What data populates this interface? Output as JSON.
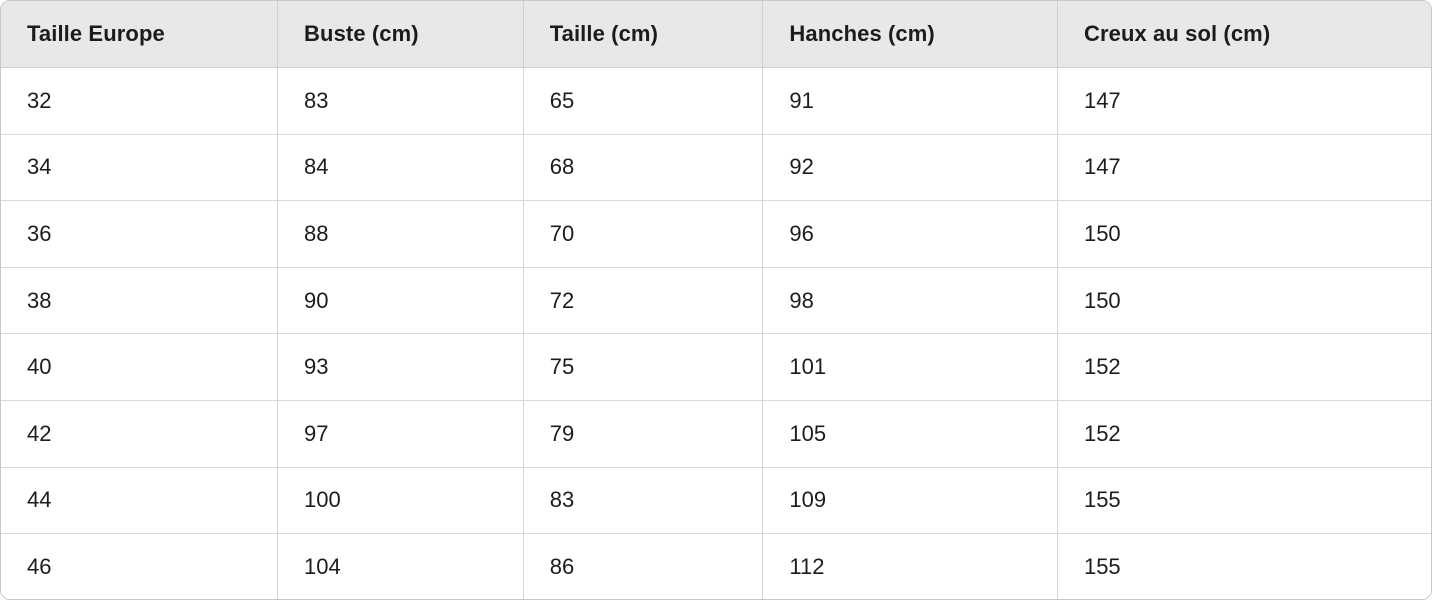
{
  "chart_data": {
    "type": "table",
    "columns": [
      "Taille Europe",
      "Buste (cm)",
      "Taille (cm)",
      "Hanches (cm)",
      "Creux au sol (cm)"
    ],
    "rows": [
      [
        "32",
        "83",
        "65",
        "91",
        "147"
      ],
      [
        "34",
        "84",
        "68",
        "92",
        "147"
      ],
      [
        "36",
        "88",
        "70",
        "96",
        "150"
      ],
      [
        "38",
        "90",
        "72",
        "98",
        "150"
      ],
      [
        "40",
        "93",
        "75",
        "101",
        "152"
      ],
      [
        "42",
        "97",
        "79",
        "105",
        "152"
      ],
      [
        "44",
        "100",
        "83",
        "109",
        "155"
      ],
      [
        "46",
        "104",
        "86",
        "112",
        "155"
      ]
    ],
    "layout": {
      "grid": true,
      "header_background": "#e8e8e9",
      "border_color": "#d5d5d7",
      "outer_border_color": "#c8c8ca",
      "text_color": "#1c1c1e",
      "corner_radius_px": 10
    }
  }
}
